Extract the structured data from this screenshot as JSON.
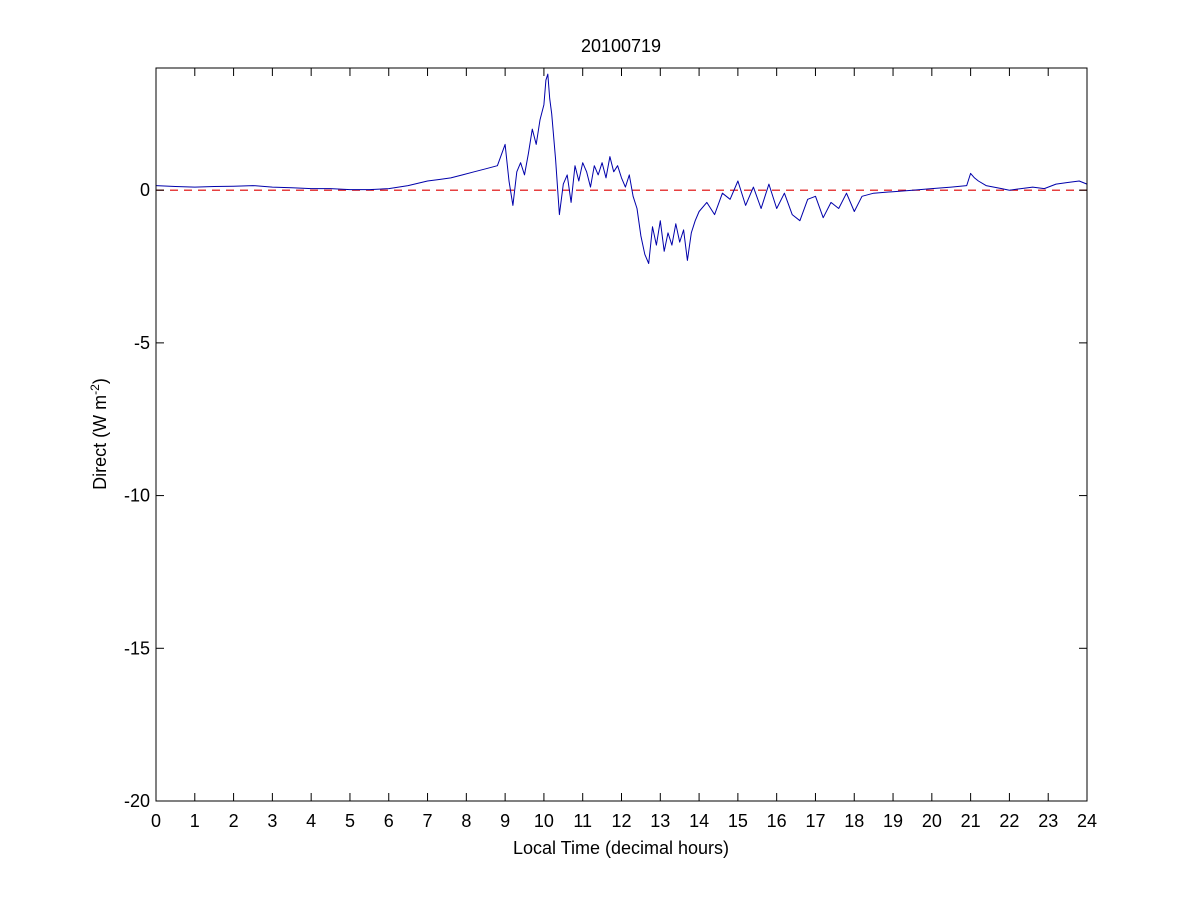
{
  "chart_data": {
    "type": "line",
    "title": "20100719",
    "xlabel": "Local Time (decimal hours)",
    "ylabel_main": "Direct (W m",
    "ylabel_sup": "-2",
    "ylabel_end": ")",
    "xlim": [
      0,
      24
    ],
    "ylim": [
      -20,
      4
    ],
    "xticks": [
      0,
      1,
      2,
      3,
      4,
      5,
      6,
      7,
      8,
      9,
      10,
      11,
      12,
      13,
      14,
      15,
      16,
      17,
      18,
      19,
      20,
      21,
      22,
      23,
      24
    ],
    "xtick_labels": [
      "0",
      "1",
      "2",
      "3",
      "4",
      "5",
      "6",
      "7",
      "8",
      "9",
      "10",
      "11",
      "12",
      "13",
      "14",
      "15",
      "16",
      "17",
      "18",
      "19",
      "20",
      "21",
      "22",
      "23",
      "24"
    ],
    "yticks": [
      0,
      -5,
      -10,
      -15,
      -20
    ],
    "ytick_labels": [
      "0",
      "-5",
      "-10",
      "-15",
      "-20"
    ],
    "grid": false,
    "colors": {
      "series": "#0000aa",
      "reference": "#dd0000",
      "axes": "#000000"
    },
    "reference_line": {
      "y": 0,
      "style": "dashed",
      "color": "#dd0000"
    },
    "series": [
      {
        "x": [
          0,
          0.5,
          1,
          1.5,
          2,
          2.5,
          3,
          3.5,
          4,
          4.5,
          5,
          5.5,
          6,
          6.5,
          7,
          7.3,
          7.6,
          7.9,
          8.2,
          8.5,
          8.8,
          9,
          9.1,
          9.2,
          9.3,
          9.4,
          9.5,
          9.6,
          9.7,
          9.8,
          9.9,
          10,
          10.05,
          10.1,
          10.15,
          10.2,
          10.3,
          10.4,
          10.5,
          10.6,
          10.7,
          10.8,
          10.9,
          11,
          11.1,
          11.2,
          11.3,
          11.4,
          11.5,
          11.6,
          11.7,
          11.8,
          11.9,
          12,
          12.1,
          12.2,
          12.3,
          12.4,
          12.5,
          12.6,
          12.7,
          12.8,
          12.9,
          13,
          13.1,
          13.2,
          13.3,
          13.4,
          13.5,
          13.6,
          13.7,
          13.8,
          13.9,
          14,
          14.2,
          14.4,
          14.6,
          14.8,
          15,
          15.2,
          15.4,
          15.6,
          15.8,
          16,
          16.2,
          16.4,
          16.6,
          16.8,
          17,
          17.2,
          17.4,
          17.6,
          17.8,
          18,
          18.2,
          18.5,
          19,
          19.5,
          20,
          20.5,
          20.9,
          21,
          21.1,
          21.2,
          21.4,
          21.6,
          21.8,
          22,
          22.3,
          22.6,
          22.9,
          23.2,
          23.5,
          23.8,
          24
        ],
        "y": [
          0.15,
          0.12,
          0.1,
          0.12,
          0.13,
          0.15,
          0.1,
          0.08,
          0.05,
          0.05,
          0.02,
          0.02,
          0.05,
          0.15,
          0.3,
          0.35,
          0.4,
          0.5,
          0.6,
          0.7,
          0.8,
          1.5,
          0.3,
          -0.5,
          0.6,
          0.9,
          0.5,
          1.2,
          2.0,
          1.5,
          2.3,
          2.8,
          3.6,
          3.8,
          3.0,
          2.5,
          1.0,
          -0.8,
          0.2,
          0.5,
          -0.4,
          0.8,
          0.3,
          0.9,
          0.6,
          0.1,
          0.8,
          0.5,
          0.9,
          0.4,
          1.1,
          0.6,
          0.8,
          0.4,
          0.1,
          0.5,
          -0.2,
          -0.6,
          -1.5,
          -2.1,
          -2.4,
          -1.2,
          -1.8,
          -1.0,
          -2.0,
          -1.4,
          -1.8,
          -1.1,
          -1.7,
          -1.3,
          -2.3,
          -1.4,
          -1.0,
          -0.7,
          -0.4,
          -0.8,
          -0.1,
          -0.3,
          0.3,
          -0.5,
          0.1,
          -0.6,
          0.2,
          -0.6,
          -0.1,
          -0.8,
          -1.0,
          -0.3,
          -0.2,
          -0.9,
          -0.4,
          -0.6,
          -0.1,
          -0.7,
          -0.2,
          -0.1,
          -0.05,
          0.0,
          0.05,
          0.1,
          0.15,
          0.55,
          0.4,
          0.3,
          0.15,
          0.1,
          0.05,
          0.0,
          0.05,
          0.1,
          0.05,
          0.2,
          0.25,
          0.3,
          0.2
        ]
      }
    ]
  }
}
